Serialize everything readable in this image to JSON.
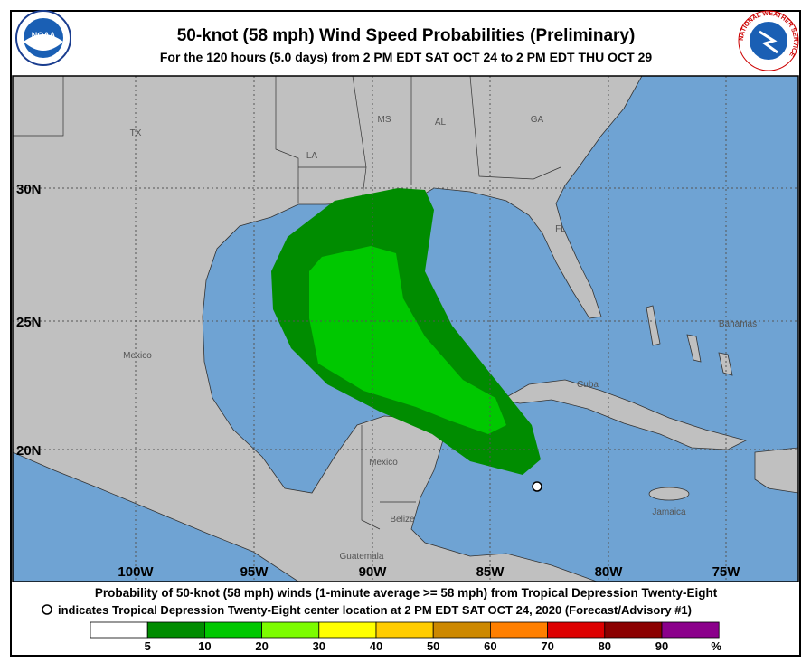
{
  "header": {
    "title": "50-knot (58 mph) Wind Speed Probabilities (Preliminary)",
    "subtitle": "For the 120 hours (5.0 days) from 2 PM EDT SAT OCT 24 to 2 PM EDT THU OCT 29"
  },
  "logos": {
    "noaa": "NOAA",
    "nws": "NATIONAL WEATHER SERVICE"
  },
  "map": {
    "lat_labels": [
      "30N",
      "25N",
      "20N"
    ],
    "lon_labels": [
      "100W",
      "95W",
      "90W",
      "85W",
      "80W",
      "75W"
    ],
    "places": [
      "TX",
      "LA",
      "MS",
      "AL",
      "GA",
      "FL",
      "Mexico",
      "Mexico",
      "Belize",
      "Guatemala",
      "Cuba",
      "Bahamas",
      "Jamaica"
    ]
  },
  "footer": {
    "line1": "Probability of 50-knot (58 mph) winds (1-minute average >= 58 mph) from Tropical Depression Twenty-Eight",
    "line2": "indicates Tropical Depression Twenty-Eight center location at 2 PM EDT SAT OCT 24, 2020 (Forecast/Advisory #1)"
  },
  "legend": {
    "colors": [
      "#ffffff",
      "#008c00",
      "#00c800",
      "#7cfc00",
      "#ffff00",
      "#ffcc00",
      "#cc8800",
      "#ff7f00",
      "#dd0000",
      "#8b0000",
      "#8b008b"
    ],
    "thresholds": [
      5,
      10,
      20,
      30,
      40,
      50,
      60,
      70,
      80,
      90
    ],
    "unit": "%"
  }
}
